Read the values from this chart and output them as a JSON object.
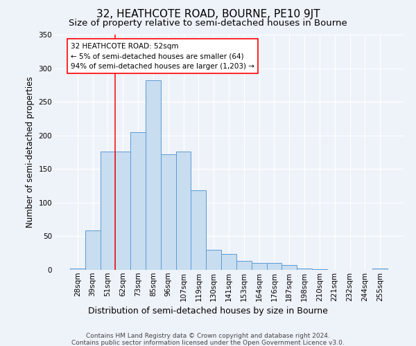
{
  "title": "32, HEATHCOTE ROAD, BOURNE, PE10 9JT",
  "subtitle": "Size of property relative to semi-detached houses in Bourne",
  "xlabel": "Distribution of semi-detached houses by size in Bourne",
  "ylabel": "Number of semi-detached properties",
  "categories": [
    "28sqm",
    "39sqm",
    "51sqm",
    "62sqm",
    "73sqm",
    "85sqm",
    "96sqm",
    "107sqm",
    "119sqm",
    "130sqm",
    "141sqm",
    "153sqm",
    "164sqm",
    "176sqm",
    "187sqm",
    "198sqm",
    "210sqm",
    "221sqm",
    "232sqm",
    "244sqm",
    "255sqm"
  ],
  "values": [
    2,
    59,
    176,
    176,
    205,
    282,
    172,
    176,
    118,
    30,
    24,
    13,
    10,
    10,
    7,
    2,
    1,
    0,
    0,
    0,
    2
  ],
  "bar_color": "#c8ddf0",
  "bar_edge_color": "#5b9bd5",
  "annotation_text_line1": "32 HEATHCOTE ROAD: 52sqm",
  "annotation_text_line2": "← 5% of semi-detached houses are smaller (64)",
  "annotation_text_line3": "94% of semi-detached houses are larger (1,203) →",
  "annotation_box_facecolor": "white",
  "annotation_box_edgecolor": "red",
  "vline_color": "red",
  "vline_x_index": 2,
  "ylim": [
    0,
    350
  ],
  "yticks": [
    0,
    50,
    100,
    150,
    200,
    250,
    300,
    350
  ],
  "footer_line1": "Contains HM Land Registry data © Crown copyright and database right 2024.",
  "footer_line2": "Contains public sector information licensed under the Open Government Licence v3.0.",
  "background_color": "#eef2f9",
  "title_fontsize": 11,
  "subtitle_fontsize": 9.5,
  "ylabel_fontsize": 8.5,
  "xlabel_fontsize": 9,
  "tick_fontsize": 7.5,
  "annotation_fontsize": 7.5,
  "footer_fontsize": 6.5
}
